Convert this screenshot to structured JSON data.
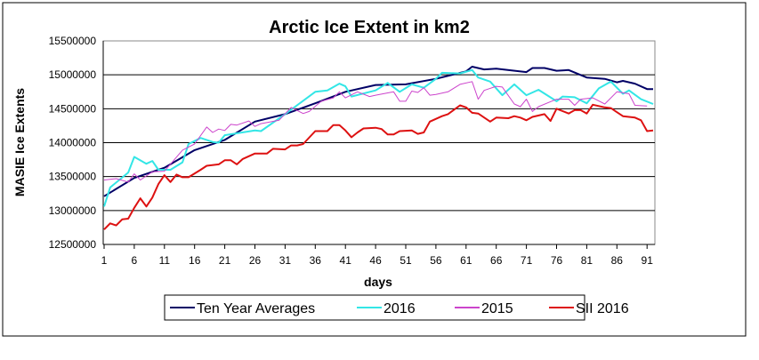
{
  "chart_data": {
    "type": "line",
    "title": "Arctic Ice Extent in km2",
    "xlabel": "days",
    "ylabel": "MASIE Ice Extents",
    "xlim": [
      1,
      92
    ],
    "ylim": [
      12500000,
      15500000
    ],
    "x_ticks": [
      "1",
      "6",
      "11",
      "16",
      "21",
      "26",
      "31",
      "36",
      "41",
      "46",
      "51",
      "56",
      "61",
      "66",
      "71",
      "76",
      "81",
      "86",
      "91"
    ],
    "y_ticks": [
      "12500000",
      "13000000",
      "13500000",
      "14000000",
      "14500000",
      "15000000",
      "15500000"
    ],
    "grid": "horizontal",
    "legend_position": "bottom",
    "series": [
      {
        "name": "Ten Year Averages",
        "color": "#000066",
        "width": 2,
        "points": [
          [
            1,
            13210000
          ],
          [
            6,
            13480000
          ],
          [
            11,
            13630000
          ],
          [
            16,
            13890000
          ],
          [
            21,
            14040000
          ],
          [
            26,
            14310000
          ],
          [
            31,
            14420000
          ],
          [
            36,
            14580000
          ],
          [
            41,
            14750000
          ],
          [
            46,
            14850000
          ],
          [
            51,
            14860000
          ],
          [
            56,
            14940000
          ],
          [
            61,
            15050000
          ],
          [
            62,
            15120000
          ],
          [
            64,
            15080000
          ],
          [
            66,
            15090000
          ],
          [
            71,
            15040000
          ],
          [
            72,
            15100000
          ],
          [
            74,
            15100000
          ],
          [
            76,
            15060000
          ],
          [
            78,
            15070000
          ],
          [
            81,
            14960000
          ],
          [
            84,
            14940000
          ],
          [
            86,
            14890000
          ],
          [
            87,
            14910000
          ],
          [
            89,
            14870000
          ],
          [
            91,
            14790000
          ],
          [
            92,
            14790000
          ]
        ]
      },
      {
        "name": "2016",
        "color": "#33e6e6",
        "width": 2,
        "points": [
          [
            1,
            13060000
          ],
          [
            2,
            13340000
          ],
          [
            5,
            13560000
          ],
          [
            6,
            13790000
          ],
          [
            8,
            13690000
          ],
          [
            9,
            13730000
          ],
          [
            10,
            13600000
          ],
          [
            12,
            13600000
          ],
          [
            14,
            13710000
          ],
          [
            15,
            13980000
          ],
          [
            17,
            14070000
          ],
          [
            19,
            14010000
          ],
          [
            20,
            14000000
          ],
          [
            21,
            14110000
          ],
          [
            26,
            14180000
          ],
          [
            27,
            14170000
          ],
          [
            31,
            14420000
          ],
          [
            36,
            14750000
          ],
          [
            38,
            14770000
          ],
          [
            40,
            14870000
          ],
          [
            41,
            14830000
          ],
          [
            42,
            14680000
          ],
          [
            46,
            14770000
          ],
          [
            48,
            14880000
          ],
          [
            50,
            14750000
          ],
          [
            52,
            14860000
          ],
          [
            54,
            14810000
          ],
          [
            56,
            14940000
          ],
          [
            57,
            15030000
          ],
          [
            60,
            15020000
          ],
          [
            62,
            15070000
          ],
          [
            63,
            14960000
          ],
          [
            65,
            14900000
          ],
          [
            67,
            14700000
          ],
          [
            69,
            14860000
          ],
          [
            71,
            14700000
          ],
          [
            73,
            14780000
          ],
          [
            76,
            14610000
          ],
          [
            77,
            14680000
          ],
          [
            79,
            14670000
          ],
          [
            81,
            14580000
          ],
          [
            83,
            14800000
          ],
          [
            85,
            14900000
          ],
          [
            87,
            14720000
          ],
          [
            88,
            14770000
          ],
          [
            90,
            14640000
          ],
          [
            92,
            14570000
          ]
        ]
      },
      {
        "name": "2015",
        "color": "#cc44cc",
        "width": 1,
        "points": [
          [
            1,
            13450000
          ],
          [
            3,
            13470000
          ],
          [
            5,
            13420000
          ],
          [
            6,
            13540000
          ],
          [
            7,
            13450000
          ],
          [
            9,
            13570000
          ],
          [
            11,
            13580000
          ],
          [
            14,
            13890000
          ],
          [
            16,
            13980000
          ],
          [
            18,
            14230000
          ],
          [
            19,
            14150000
          ],
          [
            20,
            14200000
          ],
          [
            21,
            14180000
          ],
          [
            22,
            14270000
          ],
          [
            23,
            14260000
          ],
          [
            25,
            14320000
          ],
          [
            26,
            14240000
          ],
          [
            27,
            14280000
          ],
          [
            30,
            14330000
          ],
          [
            32,
            14520000
          ],
          [
            34,
            14430000
          ],
          [
            35,
            14460000
          ],
          [
            37,
            14610000
          ],
          [
            39,
            14660000
          ],
          [
            40,
            14750000
          ],
          [
            41,
            14660000
          ],
          [
            43,
            14750000
          ],
          [
            45,
            14680000
          ],
          [
            46,
            14700000
          ],
          [
            49,
            14750000
          ],
          [
            50,
            14610000
          ],
          [
            51,
            14610000
          ],
          [
            52,
            14760000
          ],
          [
            53,
            14740000
          ],
          [
            54,
            14810000
          ],
          [
            55,
            14700000
          ],
          [
            56,
            14710000
          ],
          [
            58,
            14750000
          ],
          [
            60,
            14860000
          ],
          [
            62,
            14900000
          ],
          [
            63,
            14640000
          ],
          [
            64,
            14770000
          ],
          [
            66,
            14830000
          ],
          [
            67,
            14820000
          ],
          [
            69,
            14570000
          ],
          [
            70,
            14530000
          ],
          [
            71,
            14640000
          ],
          [
            72,
            14460000
          ],
          [
            73,
            14530000
          ],
          [
            76,
            14640000
          ],
          [
            78,
            14640000
          ],
          [
            79,
            14550000
          ],
          [
            80,
            14640000
          ],
          [
            82,
            14660000
          ],
          [
            84,
            14570000
          ],
          [
            86,
            14750000
          ],
          [
            88,
            14720000
          ],
          [
            89,
            14550000
          ],
          [
            91,
            14540000
          ]
        ]
      },
      {
        "name": "SII 2016",
        "color": "#dd1111",
        "width": 2,
        "points": [
          [
            1,
            12720000
          ],
          [
            2,
            12810000
          ],
          [
            3,
            12780000
          ],
          [
            4,
            12870000
          ],
          [
            5,
            12880000
          ],
          [
            6,
            13040000
          ],
          [
            7,
            13180000
          ],
          [
            8,
            13060000
          ],
          [
            9,
            13190000
          ],
          [
            10,
            13390000
          ],
          [
            11,
            13520000
          ],
          [
            12,
            13420000
          ],
          [
            13,
            13530000
          ],
          [
            14,
            13490000
          ],
          [
            15,
            13490000
          ],
          [
            17,
            13600000
          ],
          [
            18,
            13660000
          ],
          [
            20,
            13680000
          ],
          [
            21,
            13740000
          ],
          [
            22,
            13740000
          ],
          [
            23,
            13680000
          ],
          [
            24,
            13760000
          ],
          [
            26,
            13840000
          ],
          [
            28,
            13840000
          ],
          [
            29,
            13910000
          ],
          [
            31,
            13900000
          ],
          [
            32,
            13960000
          ],
          [
            33,
            13960000
          ],
          [
            34,
            13980000
          ],
          [
            36,
            14170000
          ],
          [
            38,
            14170000
          ],
          [
            39,
            14260000
          ],
          [
            40,
            14260000
          ],
          [
            41,
            14180000
          ],
          [
            42,
            14080000
          ],
          [
            43,
            14150000
          ],
          [
            44,
            14210000
          ],
          [
            46,
            14220000
          ],
          [
            47,
            14200000
          ],
          [
            48,
            14120000
          ],
          [
            49,
            14120000
          ],
          [
            50,
            14170000
          ],
          [
            52,
            14180000
          ],
          [
            53,
            14130000
          ],
          [
            54,
            14150000
          ],
          [
            55,
            14310000
          ],
          [
            57,
            14390000
          ],
          [
            58,
            14420000
          ],
          [
            60,
            14550000
          ],
          [
            61,
            14520000
          ],
          [
            62,
            14440000
          ],
          [
            63,
            14430000
          ],
          [
            65,
            14310000
          ],
          [
            66,
            14370000
          ],
          [
            68,
            14360000
          ],
          [
            69,
            14390000
          ],
          [
            70,
            14370000
          ],
          [
            71,
            14330000
          ],
          [
            72,
            14380000
          ],
          [
            74,
            14420000
          ],
          [
            75,
            14320000
          ],
          [
            76,
            14500000
          ],
          [
            78,
            14430000
          ],
          [
            79,
            14480000
          ],
          [
            80,
            14480000
          ],
          [
            81,
            14430000
          ],
          [
            82,
            14560000
          ],
          [
            84,
            14520000
          ],
          [
            85,
            14510000
          ],
          [
            86,
            14450000
          ],
          [
            87,
            14390000
          ],
          [
            89,
            14370000
          ],
          [
            90,
            14330000
          ],
          [
            91,
            14170000
          ],
          [
            92,
            14180000
          ]
        ]
      }
    ]
  }
}
